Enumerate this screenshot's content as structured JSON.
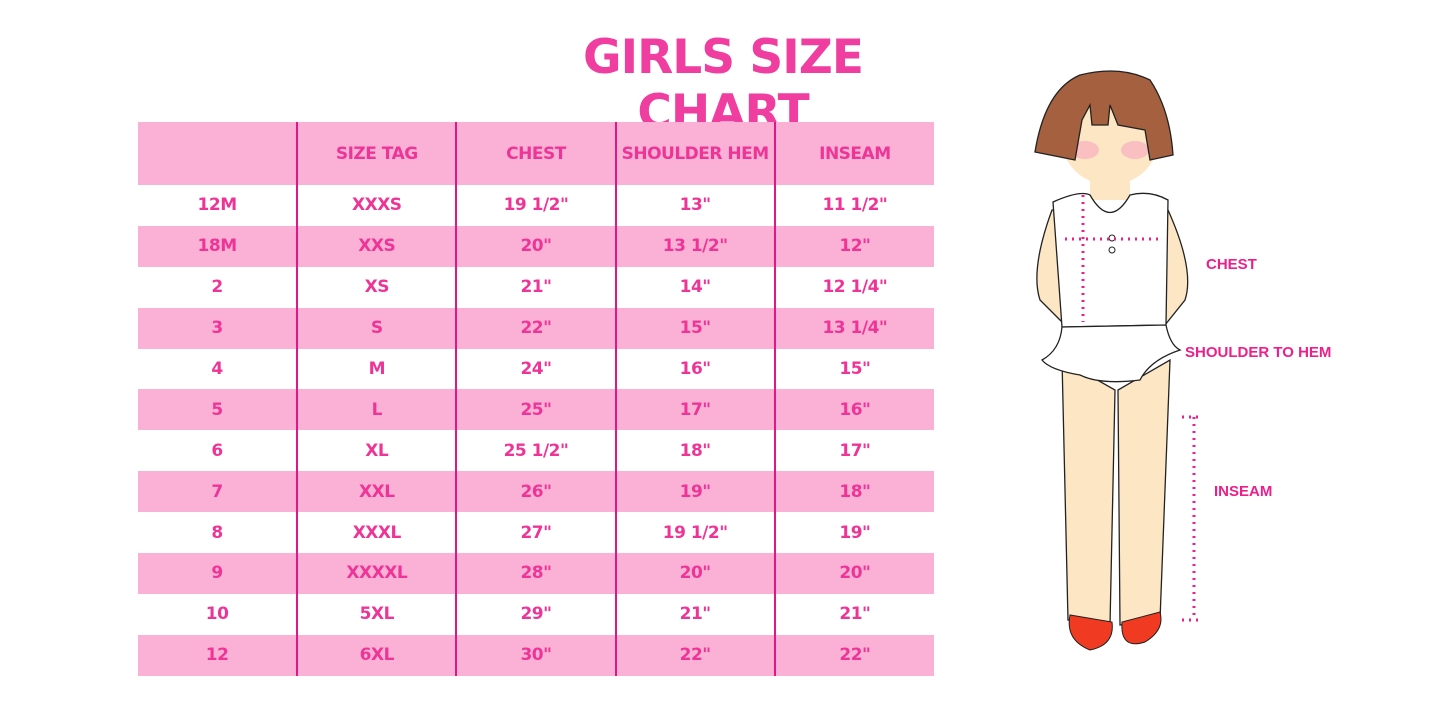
{
  "title": "GIRLS SIZE CHART",
  "table": {
    "headers": [
      "",
      "SIZE TAG",
      "CHEST",
      "SHOULDER HEM",
      "INSEAM"
    ],
    "rows": [
      [
        "12M",
        "XXXS",
        "19 1/2\"",
        "13\"",
        "11 1/2\""
      ],
      [
        "18M",
        "XXS",
        "20\"",
        "13 1/2\"",
        "12\""
      ],
      [
        "2",
        "XS",
        "21\"",
        "14\"",
        "12 1/4\""
      ],
      [
        "3",
        "S",
        "22\"",
        "15\"",
        "13 1/4\""
      ],
      [
        "4",
        "M",
        "24\"",
        "16\"",
        "15\""
      ],
      [
        "5",
        "L",
        "25\"",
        "17\"",
        "16\""
      ],
      [
        "6",
        "XL",
        "25 1/2\"",
        "18\"",
        "17\""
      ],
      [
        "7",
        "XXL",
        "26\"",
        "19\"",
        "18\""
      ],
      [
        "8",
        "XXXL",
        "27\"",
        "19 1/2\"",
        "19\""
      ],
      [
        "9",
        "XXXXL",
        "28\"",
        "20\"",
        "20\""
      ],
      [
        "10",
        "5XL",
        "29\"",
        "21\"",
        "21\""
      ],
      [
        "12",
        "6XL",
        "30\"",
        "22\"",
        "22\""
      ]
    ]
  },
  "figure": {
    "labels": {
      "chest": "CHEST",
      "shoulder_to_hem": "SHOULDER TO HEM",
      "inseam": "INSEAM"
    }
  },
  "colors": {
    "accent": "#ee3597",
    "row_pink": "#fbb1d6",
    "divider": "#e0168b"
  }
}
